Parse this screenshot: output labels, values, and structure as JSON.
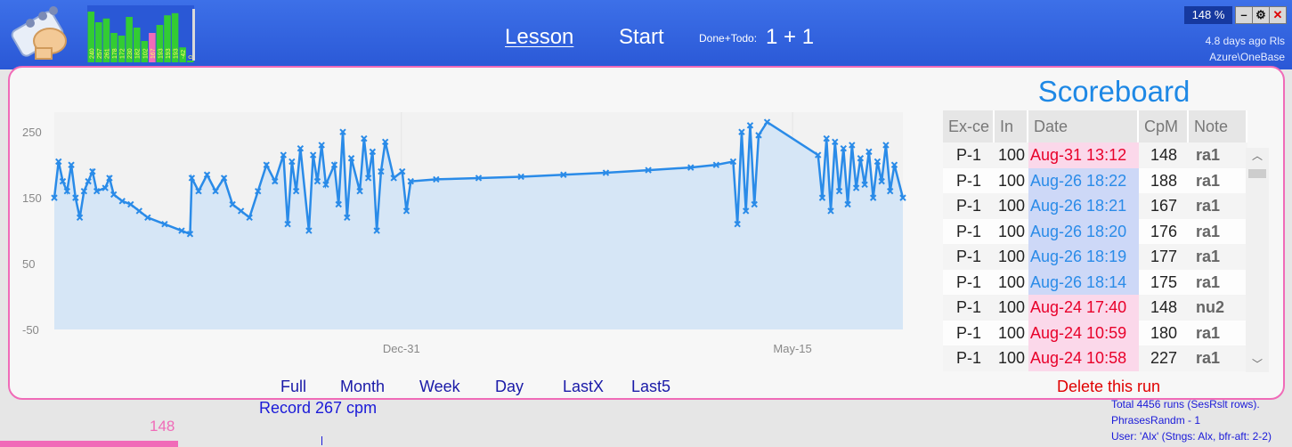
{
  "app": {
    "nav": {
      "lesson": "Lesson",
      "start": "Start"
    },
    "done_todo_label": "Done+Todo:",
    "done_todo_value": "1 + 1",
    "zoom": "148 %",
    "window_buttons": {
      "minimize": "–",
      "settings": "⚙",
      "close": "✕"
    },
    "status_line1": "4.8 days ago Rls",
    "status_line2": "Azure\\OneBase",
    "mini_bars": {
      "labels": [
        "240",
        "257",
        "261",
        "178",
        "172",
        "230",
        "182",
        "102",
        "167",
        "193",
        "193",
        "193",
        "-42",
        "0"
      ],
      "heights": [
        0.95,
        0.75,
        0.82,
        0.55,
        0.5,
        0.85,
        0.65,
        0.4,
        0.55,
        0.7,
        0.88,
        0.92,
        0.28,
        0.0
      ],
      "highlight_index": 8,
      "bar_color": "#33cc33",
      "highlight_color": "#f06bb8"
    }
  },
  "chart_data": {
    "type": "line",
    "y_ticks": [
      "250",
      "150",
      "50",
      "-50"
    ],
    "x_ticks": [
      "Dec-31",
      "May-15"
    ],
    "ylim": [
      -50,
      280
    ],
    "line_color": "#2a8be8",
    "fill_color": "#d6e6f6",
    "series": [
      {
        "values": [
          [
            0.0,
            150
          ],
          [
            0.005,
            205
          ],
          [
            0.01,
            175
          ],
          [
            0.015,
            160
          ],
          [
            0.02,
            200
          ],
          [
            0.025,
            150
          ],
          [
            0.03,
            120
          ],
          [
            0.035,
            160
          ],
          [
            0.04,
            175
          ],
          [
            0.045,
            190
          ],
          [
            0.05,
            160
          ],
          [
            0.06,
            165
          ],
          [
            0.065,
            180
          ],
          [
            0.07,
            155
          ],
          [
            0.08,
            145
          ],
          [
            0.09,
            140
          ],
          [
            0.1,
            130
          ],
          [
            0.11,
            120
          ],
          [
            0.13,
            110
          ],
          [
            0.15,
            100
          ],
          [
            0.16,
            95
          ],
          [
            0.162,
            180
          ],
          [
            0.17,
            160
          ],
          [
            0.18,
            185
          ],
          [
            0.19,
            160
          ],
          [
            0.2,
            180
          ],
          [
            0.21,
            140
          ],
          [
            0.22,
            130
          ],
          [
            0.23,
            120
          ],
          [
            0.24,
            160
          ],
          [
            0.25,
            200
          ],
          [
            0.26,
            175
          ],
          [
            0.27,
            215
          ],
          [
            0.275,
            110
          ],
          [
            0.28,
            205
          ],
          [
            0.285,
            160
          ],
          [
            0.29,
            225
          ],
          [
            0.3,
            100
          ],
          [
            0.305,
            215
          ],
          [
            0.31,
            175
          ],
          [
            0.315,
            230
          ],
          [
            0.32,
            170
          ],
          [
            0.33,
            200
          ],
          [
            0.335,
            140
          ],
          [
            0.34,
            250
          ],
          [
            0.345,
            120
          ],
          [
            0.35,
            210
          ],
          [
            0.36,
            160
          ],
          [
            0.365,
            240
          ],
          [
            0.37,
            180
          ],
          [
            0.375,
            220
          ],
          [
            0.38,
            100
          ],
          [
            0.385,
            190
          ],
          [
            0.39,
            235
          ],
          [
            0.4,
            180
          ],
          [
            0.41,
            190
          ],
          [
            0.415,
            130
          ],
          [
            0.42,
            175
          ],
          [
            0.45,
            178
          ],
          [
            0.5,
            180
          ],
          [
            0.55,
            182
          ],
          [
            0.6,
            185
          ],
          [
            0.65,
            188
          ],
          [
            0.7,
            192
          ],
          [
            0.75,
            196
          ],
          [
            0.78,
            200
          ],
          [
            0.8,
            205
          ],
          [
            0.805,
            110
          ],
          [
            0.81,
            250
          ],
          [
            0.815,
            130
          ],
          [
            0.82,
            260
          ],
          [
            0.825,
            140
          ],
          [
            0.83,
            245
          ],
          [
            0.84,
            265
          ],
          [
            0.9,
            215
          ],
          [
            0.905,
            150
          ],
          [
            0.91,
            240
          ],
          [
            0.915,
            130
          ],
          [
            0.92,
            235
          ],
          [
            0.925,
            160
          ],
          [
            0.93,
            225
          ],
          [
            0.935,
            140
          ],
          [
            0.94,
            230
          ],
          [
            0.945,
            165
          ],
          [
            0.95,
            210
          ],
          [
            0.955,
            170
          ],
          [
            0.96,
            220
          ],
          [
            0.965,
            150
          ],
          [
            0.97,
            205
          ],
          [
            0.975,
            175
          ],
          [
            0.98,
            230
          ],
          [
            0.985,
            160
          ],
          [
            0.99,
            200
          ],
          [
            1.0,
            150
          ]
        ]
      }
    ]
  },
  "scoreboard": {
    "title": "Scoreboard",
    "columns": [
      "Ex-ce",
      "In",
      "Date",
      "CpM",
      "Note"
    ],
    "rows": [
      {
        "ex": "P-1",
        "in": "100",
        "date": "Aug-31 13:12",
        "cpm": "148",
        "note": "ra1",
        "date_style": "red"
      },
      {
        "ex": "P-1",
        "in": "100",
        "date": "Aug-26 18:22",
        "cpm": "188",
        "note": "ra1",
        "date_style": "blue"
      },
      {
        "ex": "P-1",
        "in": "100",
        "date": "Aug-26 18:21",
        "cpm": "167",
        "note": "ra1",
        "date_style": "blue"
      },
      {
        "ex": "P-1",
        "in": "100",
        "date": "Aug-26 18:20",
        "cpm": "176",
        "note": "ra1",
        "date_style": "blue"
      },
      {
        "ex": "P-1",
        "in": "100",
        "date": "Aug-26 18:19",
        "cpm": "177",
        "note": "ra1",
        "date_style": "blue"
      },
      {
        "ex": "P-1",
        "in": "100",
        "date": "Aug-26 18:14",
        "cpm": "175",
        "note": "ra1",
        "date_style": "blue"
      },
      {
        "ex": "P-1",
        "in": "100",
        "date": "Aug-24 17:40",
        "cpm": "148",
        "note": "nu2",
        "date_style": "red"
      },
      {
        "ex": "P-1",
        "in": "100",
        "date": "Aug-24 10:59",
        "cpm": "180",
        "note": "ra1",
        "date_style": "red"
      },
      {
        "ex": "P-1",
        "in": "100",
        "date": "Aug-24 10:58",
        "cpm": "227",
        "note": "ra1",
        "date_style": "red"
      }
    ]
  },
  "ranges": [
    "Full",
    "Month",
    "Week",
    "Day",
    "LastX",
    "Last5"
  ],
  "record_text": "Record 267 cpm",
  "delete_label": "Delete this run",
  "bottom_value": "148",
  "info_lines": [
    "Total 4456 runs (SesRslt rows).",
    "PhrasesRandm - 1",
    "User: 'Alx' (Stngs: Alx,  bfr-aft: 2-2)"
  ]
}
